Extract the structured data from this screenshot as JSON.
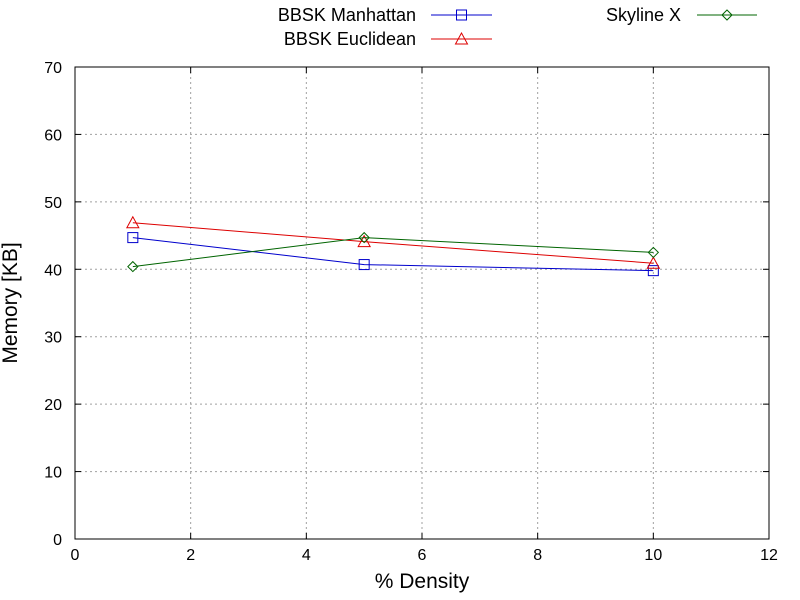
{
  "chart_data": {
    "type": "line",
    "title": "",
    "xlabel": "% Density",
    "ylabel": "Memory [KB]",
    "xlim": [
      0,
      12
    ],
    "ylim": [
      0,
      70
    ],
    "xticks": [
      0,
      2,
      4,
      6,
      8,
      10,
      12
    ],
    "yticks": [
      0,
      10,
      20,
      30,
      40,
      50,
      60,
      70
    ],
    "grid": true,
    "legend_position": "top, outside plot",
    "series": [
      {
        "name": "BBSK Manhattan",
        "color": "#0000cc",
        "marker": "square",
        "x": [
          1,
          5,
          10
        ],
        "y": [
          44.7,
          40.7,
          39.8
        ]
      },
      {
        "name": "BBSK Euclidean",
        "color": "#dd0000",
        "marker": "triangle",
        "x": [
          1,
          5,
          10
        ],
        "y": [
          46.9,
          44.1,
          40.9
        ]
      },
      {
        "name": "Skyline X",
        "color": "#006400",
        "marker": "diamond",
        "x": [
          1,
          5,
          10
        ],
        "y": [
          40.4,
          44.7,
          42.5
        ]
      }
    ]
  }
}
